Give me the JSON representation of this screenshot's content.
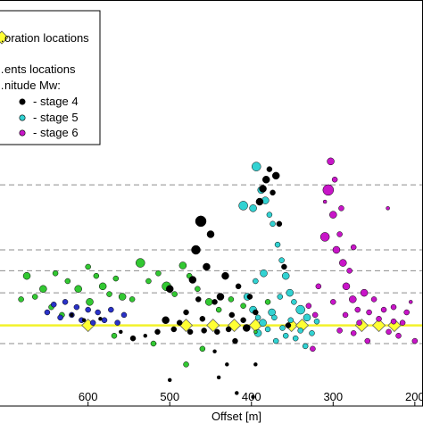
{
  "chart_data": {
    "type": "scatter",
    "xlabel": "Offset [m]",
    "x_reversed": true,
    "xlim": [
      710,
      190
    ],
    "ylim": [
      -62,
      250
    ],
    "x_ticks": [
      600,
      500,
      400,
      300,
      200
    ],
    "x_tick_labels": [
      "600",
      "500",
      "400",
      "300",
      "200"
    ],
    "grid": false,
    "legend": {
      "placement": "top-left",
      "entries": [
        {
          "label": "…oration locations",
          "marker": "diamond"
        },
        {
          "label": "…ents locations",
          "marker": "none"
        },
        {
          "label": "…nitude Mw:",
          "marker": "none"
        },
        {
          "label": "- stage 4",
          "marker": "circle"
        },
        {
          "label": "- stage 5",
          "marker": "circle"
        },
        {
          "label": "- stage 6",
          "marker": "circle"
        }
      ]
    },
    "dashed_lines_y": [
      108,
      58,
      42,
      25,
      -14
    ],
    "dashed_color": "#8c8c8c",
    "perforation_line": {
      "color": "#f2f22a",
      "y": 0,
      "x_from": 710,
      "x_to": 190,
      "markers_x": [
        600,
        480,
        447,
        421,
        395,
        351,
        338,
        265,
        244,
        225
      ]
    },
    "series": [
      {
        "name": "stage 4",
        "color": "#000000",
        "points": [
          [
            620,
            8,
            2
          ],
          [
            605,
            4,
            2
          ],
          [
            585,
            5,
            2
          ],
          [
            560,
            -5,
            2
          ],
          [
            545,
            -10,
            3
          ],
          [
            530,
            -8,
            2
          ],
          [
            515,
            -5,
            3
          ],
          [
            505,
            4,
            4
          ],
          [
            500,
            28,
            4
          ],
          [
            495,
            -3,
            3
          ],
          [
            488,
            2,
            3
          ],
          [
            480,
            10,
            3
          ],
          [
            472,
            35,
            4
          ],
          [
            468,
            58,
            5
          ],
          [
            462,
            80,
            6
          ],
          [
            455,
            45,
            4
          ],
          [
            450,
            70,
            4
          ],
          [
            445,
            18,
            3
          ],
          [
            442,
            -5,
            3
          ],
          [
            438,
            22,
            4
          ],
          [
            432,
            38,
            4
          ],
          [
            428,
            -3,
            3
          ],
          [
            424,
            8,
            3
          ],
          [
            420,
            -12,
            3
          ],
          [
            416,
            30,
            3
          ],
          [
            410,
            4,
            3
          ],
          [
            406,
            -2,
            4
          ],
          [
            402,
            22,
            3
          ],
          [
            398,
            -55,
            2
          ],
          [
            395,
            10,
            3
          ],
          [
            390,
            95,
            4
          ],
          [
            386,
            105,
            4
          ],
          [
            382,
            112,
            4
          ],
          [
            378,
            120,
            3
          ],
          [
            374,
            102,
            3
          ],
          [
            370,
            115,
            4
          ],
          [
            366,
            78,
            3
          ],
          [
            360,
            45,
            3
          ],
          [
            355,
            0,
            3
          ],
          [
            465,
            20,
            3
          ],
          [
            458,
            -4,
            3
          ],
          [
            440,
            -40,
            2
          ],
          [
            418,
            -52,
            2
          ],
          [
            395,
            -30,
            2
          ],
          [
            475,
            -5,
            3
          ],
          [
            460,
            5,
            3
          ],
          [
            445,
            -20,
            2
          ],
          [
            430,
            -30,
            2
          ],
          [
            500,
            -42,
            2
          ]
        ]
      },
      {
        "name": "stage 5",
        "color": "#32d2d2",
        "points": [
          [
            410,
            92,
            5
          ],
          [
            398,
            90,
            4
          ],
          [
            394,
            122,
            5
          ],
          [
            388,
            104,
            4
          ],
          [
            383,
            96,
            4
          ],
          [
            378,
            85,
            3
          ],
          [
            374,
            78,
            3
          ],
          [
            368,
            62,
            3
          ],
          [
            363,
            50,
            3
          ],
          [
            358,
            38,
            4
          ],
          [
            353,
            25,
            4
          ],
          [
            348,
            18,
            3
          ],
          [
            340,
            12,
            5
          ],
          [
            332,
            6,
            4
          ],
          [
            326,
            -6,
            3
          ],
          [
            320,
            3,
            3
          ],
          [
            405,
            22,
            4
          ],
          [
            398,
            12,
            4
          ],
          [
            392,
            6,
            3
          ],
          [
            386,
            2,
            4
          ],
          [
            380,
            -3,
            3
          ],
          [
            375,
            10,
            4
          ],
          [
            370,
            -12,
            3
          ],
          [
            365,
            22,
            3
          ],
          [
            358,
            -8,
            3
          ],
          [
            352,
            4,
            3
          ],
          [
            346,
            -10,
            3
          ],
          [
            340,
            -4,
            3
          ],
          [
            334,
            -16,
            3
          ],
          [
            395,
            34,
            3
          ],
          [
            385,
            40,
            4
          ],
          [
            392,
            -6,
            4
          ],
          [
            372,
            6,
            3
          ],
          [
            362,
            -2,
            3
          ]
        ]
      },
      {
        "name": "stage 6",
        "color": "#c815c8",
        "points": [
          [
            310,
            68,
            5
          ],
          [
            306,
            104,
            6
          ],
          [
            303,
            126,
            4
          ],
          [
            300,
            85,
            4
          ],
          [
            296,
            58,
            4
          ],
          [
            292,
            70,
            3
          ],
          [
            288,
            48,
            4
          ],
          [
            284,
            30,
            4
          ],
          [
            280,
            42,
            3
          ],
          [
            276,
            20,
            4
          ],
          [
            270,
            12,
            3
          ],
          [
            262,
            25,
            4
          ],
          [
            256,
            10,
            3
          ],
          [
            250,
            20,
            3
          ],
          [
            244,
            5,
            3
          ],
          [
            238,
            12,
            3
          ],
          [
            232,
            -5,
            3
          ],
          [
            226,
            3,
            3
          ],
          [
            220,
            -8,
            3
          ],
          [
            215,
            2,
            3
          ],
          [
            210,
            10,
            3
          ],
          [
            300,
            18,
            3
          ],
          [
            292,
            -4,
            3
          ],
          [
            285,
            8,
            3
          ],
          [
            275,
            -6,
            3
          ],
          [
            268,
            2,
            3
          ],
          [
            258,
            -12,
            3
          ],
          [
            318,
            30,
            3
          ],
          [
            322,
            8,
            3
          ],
          [
            330,
            15,
            3
          ],
          [
            325,
            -18,
            3
          ],
          [
            200,
            -12,
            3
          ],
          [
            205,
            18,
            2
          ],
          [
            290,
            90,
            3
          ],
          [
            275,
            60,
            3
          ],
          [
            298,
            112,
            3
          ],
          [
            310,
            95,
            2
          ],
          [
            233,
            90,
            2
          ],
          [
            226,
            14,
            3
          ]
        ]
      },
      {
        "name": "green",
        "color": "#32c832",
        "points": [
          [
            682,
            20,
            3
          ],
          [
            675,
            38,
            4
          ],
          [
            665,
            22,
            3
          ],
          [
            655,
            28,
            4
          ],
          [
            645,
            14,
            3
          ],
          [
            632,
            8,
            3
          ],
          [
            625,
            34,
            3
          ],
          [
            612,
            28,
            4
          ],
          [
            598,
            18,
            4
          ],
          [
            590,
            38,
            3
          ],
          [
            582,
            30,
            4
          ],
          [
            574,
            24,
            3
          ],
          [
            566,
            36,
            3
          ],
          [
            558,
            22,
            4
          ],
          [
            546,
            20,
            3
          ],
          [
            536,
            48,
            5
          ],
          [
            526,
            34,
            3
          ],
          [
            514,
            40,
            3
          ],
          [
            504,
            30,
            5
          ],
          [
            494,
            24,
            3
          ],
          [
            484,
            46,
            4
          ],
          [
            476,
            38,
            3
          ],
          [
            466,
            28,
            3
          ],
          [
            452,
            18,
            4
          ],
          [
            440,
            12,
            3
          ],
          [
            425,
            20,
            3
          ],
          [
            410,
            15,
            3
          ],
          [
            395,
            -5,
            2
          ],
          [
            380,
            18,
            3
          ],
          [
            568,
            -8,
            3
          ],
          [
            520,
            -14,
            3
          ],
          [
            480,
            -30,
            3
          ],
          [
            460,
            -18,
            3
          ],
          [
            600,
            45,
            3
          ],
          [
            640,
            40,
            3
          ]
        ]
      },
      {
        "name": "blue",
        "color": "#2a32c8",
        "points": [
          [
            650,
            10,
            3
          ],
          [
            642,
            16,
            3
          ],
          [
            634,
            6,
            3
          ],
          [
            628,
            18,
            3
          ],
          [
            620,
            8,
            3
          ],
          [
            614,
            14,
            3
          ],
          [
            608,
            4,
            3
          ],
          [
            600,
            12,
            3
          ],
          [
            594,
            2,
            3
          ],
          [
            588,
            10,
            3
          ],
          [
            580,
            4,
            3
          ],
          [
            572,
            12,
            3
          ],
          [
            564,
            2,
            3
          ],
          [
            556,
            8,
            3
          ]
        ]
      }
    ]
  }
}
